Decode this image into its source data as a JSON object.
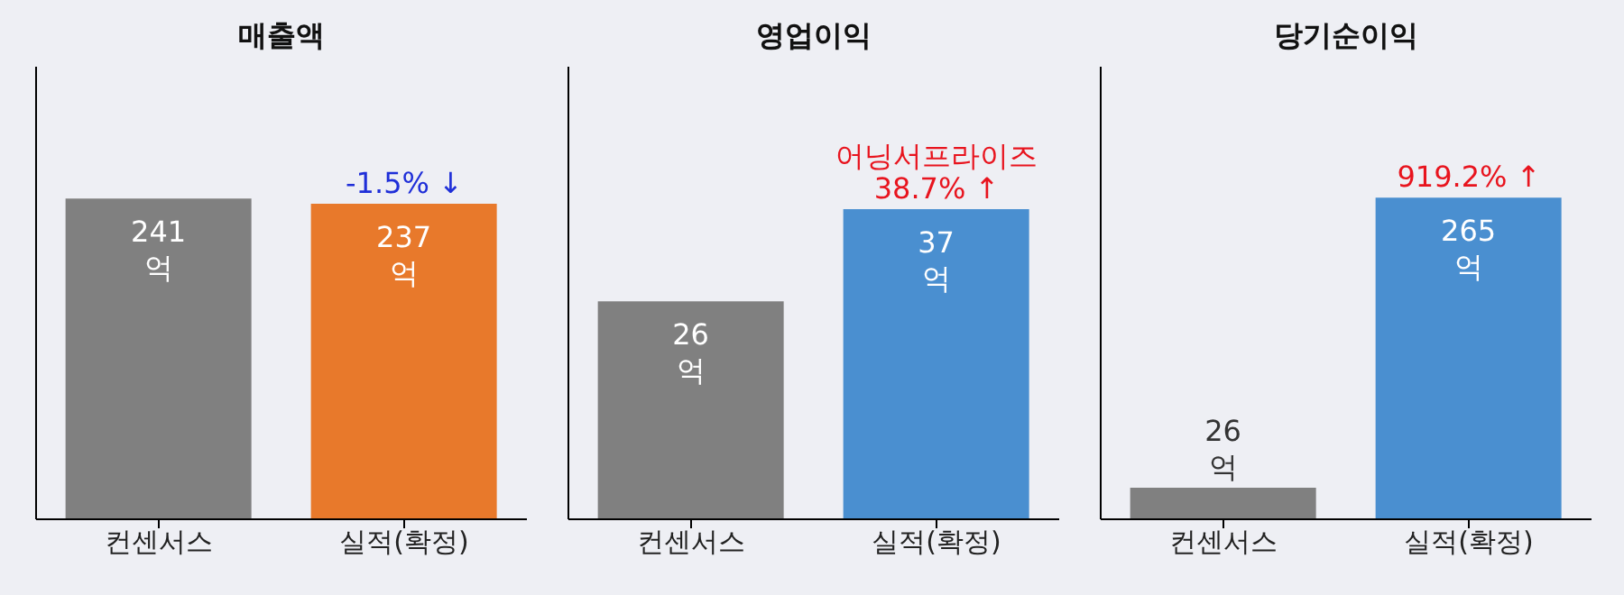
{
  "chart_data": [
    {
      "type": "bar",
      "title": "매출액",
      "categories": [
        "컨센서스",
        "실적(확정)"
      ],
      "values": [
        241,
        237
      ],
      "colors": [
        "#808080",
        "#e8792b"
      ],
      "value_labels": [
        "241 억",
        "237 억"
      ],
      "ylim": [
        0,
        340
      ],
      "tick_labels": "x",
      "grid": false,
      "legend": false,
      "annotations": [
        {
          "text": "-1.5% ↓",
          "x": "실적(확정)",
          "y": 237
        }
      ]
    },
    {
      "type": "bar",
      "title": "영업이익",
      "categories": [
        "컨센서스",
        "실적(확정)"
      ],
      "values": [
        26,
        37
      ],
      "colors": [
        "#808080",
        "#4a8fd0"
      ],
      "value_labels": [
        "26 억",
        "37 억"
      ],
      "ylim": [
        0,
        54
      ],
      "tick_labels": "x",
      "grid": false,
      "legend": false,
      "annotations": [
        {
          "text": "어닝서프라이즈",
          "x": "실적(확정)",
          "y": 37
        },
        {
          "text": "38.7% ↑",
          "x": "실적(확정)",
          "y": 37
        }
      ]
    },
    {
      "type": "bar",
      "title": "당기순이익",
      "categories": [
        "컨센서스",
        "실적(확정)"
      ],
      "values": [
        26,
        265
      ],
      "colors": [
        "#808080",
        "#4a8fd0"
      ],
      "value_labels": [
        "26 억",
        "265 억"
      ],
      "ylim": [
        0,
        373
      ],
      "tick_labels": "x",
      "grid": false,
      "legend": false,
      "annotations": [
        {
          "text": "919.2% ↑",
          "x": "실적(확정)",
          "y": 265
        }
      ]
    }
  ]
}
